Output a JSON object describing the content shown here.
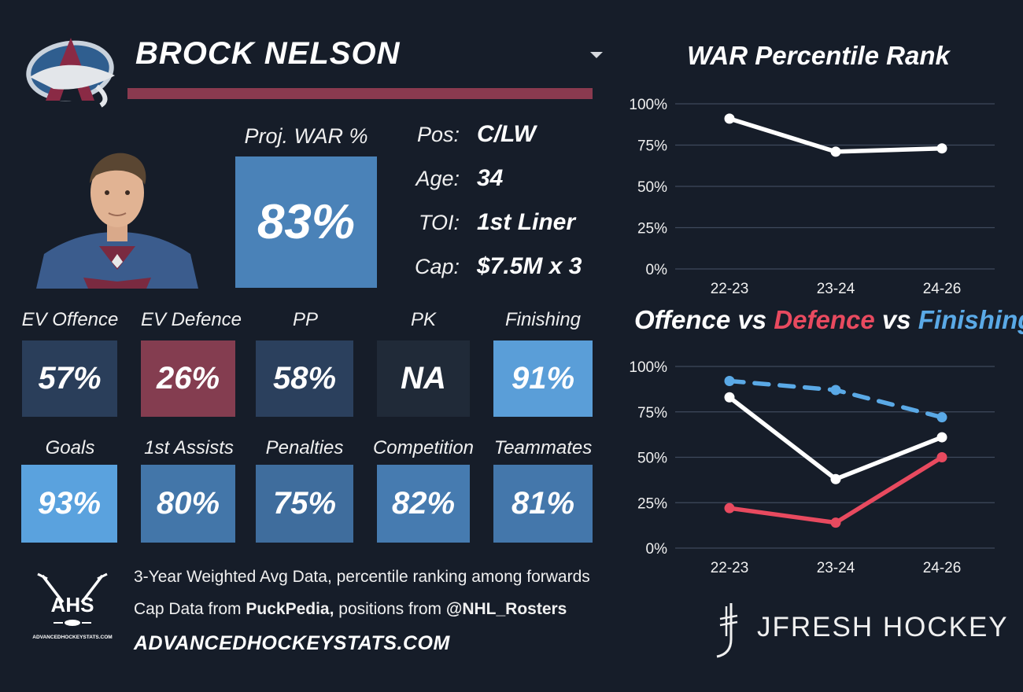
{
  "header": {
    "player_name": "BROCK NELSON"
  },
  "proj_war": {
    "label": "Proj. WAR %",
    "value": "83%"
  },
  "info": [
    {
      "label": "Pos:",
      "value": "C/LW"
    },
    {
      "label": "Age:",
      "value": "34"
    },
    {
      "label": "TOI:",
      "value": "1st Liner"
    },
    {
      "label": "Cap:",
      "value": "$7.5M x 3"
    }
  ],
  "metrics_row1": [
    {
      "label": "EV Offence",
      "value": "57%",
      "color": "#2a3e5a"
    },
    {
      "label": "EV Defence",
      "value": "26%",
      "color": "#843d50"
    },
    {
      "label": "PP",
      "value": "58%",
      "color": "#2b405d"
    },
    {
      "label": "PK",
      "value": "NA",
      "color": "#202a38"
    },
    {
      "label": "Finishing",
      "value": "91%",
      "color": "#5a9ed8"
    }
  ],
  "metrics_row2": [
    {
      "label": "Goals",
      "value": "93%",
      "color": "#5aa2de"
    },
    {
      "label": "1st Assists",
      "value": "80%",
      "color": "#4376a9"
    },
    {
      "label": "Penalties",
      "value": "75%",
      "color": "#3f6d9d"
    },
    {
      "label": "Competition",
      "value": "82%",
      "color": "#467bb0"
    },
    {
      "label": "Teammates",
      "value": "81%",
      "color": "#4477ab"
    }
  ],
  "footer": {
    "line1": "3-Year Weighted Avg Data, percentile ranking among forwards",
    "line2_prefix": "Cap Data from ",
    "line2_source1": "PuckPedia,",
    "line2_mid": " positions from ",
    "line2_source2": "@NHL_Rosters",
    "site": "ADVANCEDHOCKEYSTATS.COM",
    "ahs_logo_text": "AHS",
    "ahs_logo_small": "ADVANCEDHOCKEYSTATS.COM",
    "brand": "JFRESH HOCKEY"
  },
  "colors": {
    "background": "#161d29",
    "offence": "#ffffff",
    "defence": "#e84a5f",
    "finishing": "#5aa9e6",
    "name_bar": "#8a3a4f",
    "grid": "#3f4a5c"
  },
  "chart_data": [
    {
      "type": "line",
      "title": "WAR Percentile Rank",
      "categories": [
        "22-23",
        "23-24",
        "24-26"
      ],
      "series": [
        {
          "values": [
            91,
            71,
            73
          ],
          "color": "#ffffff",
          "style": "solid"
        }
      ],
      "yticks": [
        "0%",
        "25%",
        "50%",
        "75%",
        "100%"
      ],
      "ylim": [
        0,
        100
      ],
      "grid": true
    },
    {
      "type": "line",
      "title_parts": [
        "Offence",
        " vs ",
        "Defence",
        " vs ",
        "Finishing"
      ],
      "categories": [
        "22-23",
        "23-24",
        "24-26"
      ],
      "series": [
        {
          "name": "Offence",
          "values": [
            83,
            38,
            61
          ],
          "color": "#ffffff",
          "style": "solid"
        },
        {
          "name": "Defence",
          "values": [
            22,
            14,
            50
          ],
          "color": "#e84a5f",
          "style": "solid"
        },
        {
          "name": "Finishing",
          "values": [
            92,
            87,
            72
          ],
          "color": "#5aa9e6",
          "style": "dashed"
        }
      ],
      "yticks": [
        "0%",
        "25%",
        "50%",
        "75%",
        "100%"
      ],
      "ylim": [
        0,
        100
      ],
      "grid": true
    }
  ]
}
